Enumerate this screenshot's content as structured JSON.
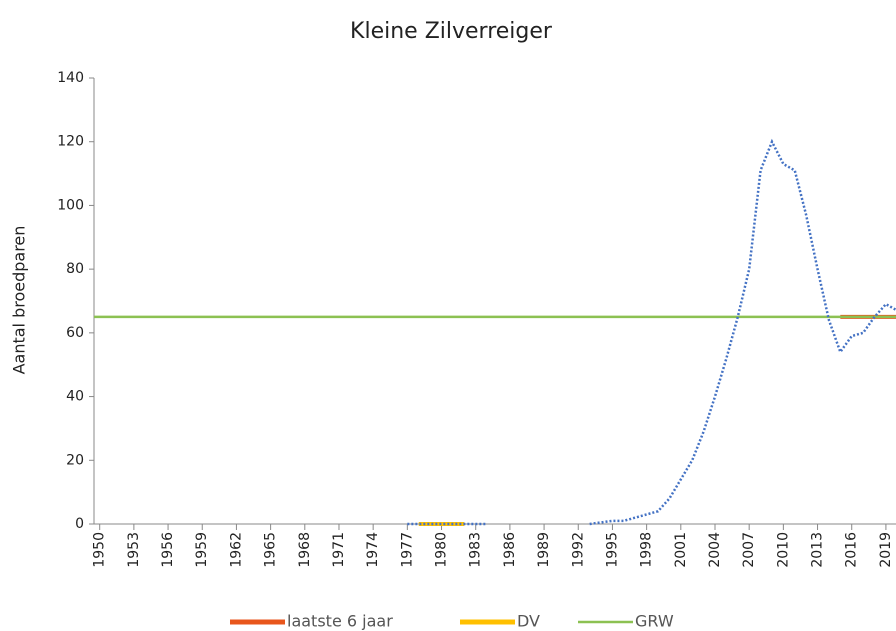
{
  "chart_data": {
    "type": "line",
    "title": "Kleine Zilverreiger",
    "y_label": "Aantal broedparen",
    "x": [
      1950,
      1951,
      1952,
      1953,
      1954,
      1955,
      1956,
      1957,
      1958,
      1959,
      1960,
      1961,
      1962,
      1963,
      1964,
      1965,
      1966,
      1967,
      1968,
      1969,
      1970,
      1971,
      1972,
      1973,
      1974,
      1975,
      1976,
      1977,
      1978,
      1979,
      1980,
      1981,
      1982,
      1983,
      1984,
      1985,
      1986,
      1987,
      1988,
      1989,
      1990,
      1991,
      1992,
      1993,
      1994,
      1995,
      1996,
      1997,
      1998,
      1999,
      2000,
      2001,
      2002,
      2003,
      2004,
      2005,
      2006,
      2007,
      2008,
      2009,
      2010,
      2011,
      2012,
      2013,
      2014,
      2015,
      2016,
      2017,
      2018,
      2019,
      2020
    ],
    "series": [
      {
        "color": "#4472c4",
        "values": [
          null,
          null,
          null,
          null,
          null,
          null,
          null,
          null,
          null,
          null,
          null,
          null,
          null,
          null,
          null,
          null,
          null,
          null,
          null,
          null,
          null,
          null,
          null,
          null,
          null,
          null,
          null,
          0,
          0,
          0,
          0,
          0,
          0,
          0,
          0,
          null,
          null,
          null,
          null,
          null,
          null,
          null,
          null,
          0,
          0.5,
          1,
          1,
          2,
          3,
          4,
          8,
          14,
          20,
          29,
          40,
          52,
          65,
          80,
          111,
          120,
          113,
          111,
          97,
          80,
          64,
          54,
          59,
          60,
          65,
          69,
          67
        ]
      }
    ],
    "references": [
      {
        "name": "laatste 6 jaar",
        "color": "#e8561c",
        "value": 65,
        "x": [
          2015,
          2020.5
        ]
      },
      {
        "name": "DV",
        "color": "#ffc000",
        "value": 0,
        "x": [
          1978,
          1982
        ]
      },
      {
        "name": "GRW",
        "color": "#8cc152",
        "value": 65,
        "x": [
          1949.5,
          2020.5
        ]
      }
    ],
    "xlim": [
      1949.5,
      2020.5
    ],
    "xticks": [
      1950,
      1953,
      1956,
      1959,
      1962,
      1965,
      1968,
      1971,
      1974,
      1977,
      1980,
      1983,
      1986,
      1989,
      1992,
      1995,
      1998,
      2001,
      2004,
      2007,
      2010,
      2013,
      2016,
      2019
    ],
    "ylim": [
      0,
      140
    ],
    "yticks": [
      0,
      20,
      40,
      60,
      80,
      100,
      120,
      140
    ]
  }
}
